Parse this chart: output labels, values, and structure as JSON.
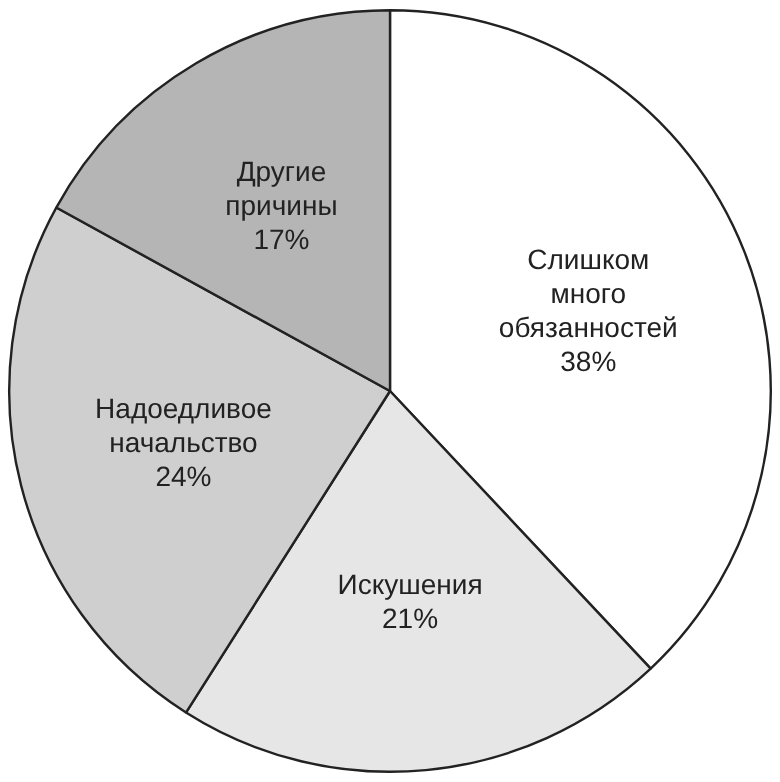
{
  "chart_data": {
    "type": "pie",
    "categories": [
      "Слишком много обязанностей",
      "Искушения",
      "Надоедливое начальство",
      "Другие причины"
    ],
    "values": [
      38,
      21,
      24,
      17
    ],
    "colors": [
      "#ffffff",
      "#e6e6e6",
      "#cfcfcf",
      "#b5b5b5"
    ],
    "value_labels": [
      "38%",
      "21%",
      "24%",
      "17%"
    ],
    "legend": false
  }
}
